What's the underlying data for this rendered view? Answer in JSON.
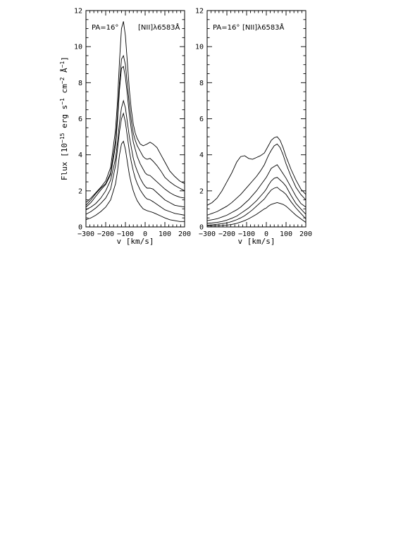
{
  "chart_data": [
    {
      "type": "line",
      "panel": "left",
      "xlabel": "v [km/s]",
      "ylabel": "Flux [10^-15 erg s^-1 cm^-2 Å^-1]",
      "xlim": [
        -300,
        200
      ],
      "ylim": [
        0,
        12
      ],
      "xticks": [
        -300,
        -200,
        -100,
        0,
        100,
        200
      ],
      "yticks": [
        0,
        2,
        4,
        6,
        8,
        10,
        12
      ],
      "grid": false,
      "annotations": [
        "PA=16°",
        "[NII]λ6583Å"
      ],
      "x": [
        -300,
        -275,
        -250,
        -225,
        -200,
        -175,
        -150,
        -140,
        -130,
        -120,
        -110,
        -100,
        -90,
        -80,
        -70,
        -60,
        -50,
        -40,
        -25,
        -10,
        0,
        10,
        25,
        40,
        60,
        80,
        100,
        125,
        150,
        175,
        200
      ],
      "series": [
        {
          "values": [
            1.35,
            1.6,
            1.9,
            2.2,
            2.55,
            3.3,
            5.4,
            7.0,
            9.2,
            11.0,
            11.4,
            10.6,
            9.1,
            7.6,
            6.5,
            5.7,
            5.2,
            4.9,
            4.6,
            4.5,
            4.55,
            4.6,
            4.7,
            4.6,
            4.4,
            4.0,
            3.6,
            3.1,
            2.8,
            2.55,
            2.4
          ]
        },
        {
          "values": [
            1.2,
            1.5,
            1.85,
            2.15,
            2.4,
            3.0,
            4.8,
            6.2,
            8.0,
            9.3,
            9.5,
            9.0,
            7.9,
            6.8,
            5.9,
            5.2,
            4.8,
            4.5,
            4.2,
            3.9,
            3.8,
            3.75,
            3.8,
            3.65,
            3.4,
            3.1,
            2.75,
            2.5,
            2.3,
            2.15,
            2.0
          ]
        },
        {
          "values": [
            1.1,
            1.35,
            1.7,
            2.05,
            2.35,
            2.9,
            4.5,
            5.9,
            7.6,
            8.8,
            8.9,
            8.3,
            7.3,
            6.2,
            5.4,
            4.7,
            4.3,
            3.9,
            3.5,
            3.2,
            3.0,
            2.9,
            2.85,
            2.7,
            2.5,
            2.3,
            2.1,
            1.9,
            1.75,
            1.65,
            1.6
          ]
        },
        {
          "values": [
            0.95,
            1.1,
            1.3,
            1.6,
            2.0,
            2.6,
            3.8,
            4.7,
            5.8,
            6.6,
            7.0,
            6.6,
            5.8,
            5.0,
            4.4,
            3.8,
            3.4,
            3.1,
            2.7,
            2.4,
            2.25,
            2.15,
            2.15,
            2.1,
            1.9,
            1.7,
            1.5,
            1.35,
            1.2,
            1.15,
            1.1
          ]
        },
        {
          "values": [
            0.7,
            0.85,
            1.05,
            1.3,
            1.6,
            2.1,
            3.4,
            4.3,
            5.3,
            6.0,
            6.3,
            5.8,
            5.0,
            4.2,
            3.6,
            3.1,
            2.7,
            2.4,
            2.05,
            1.8,
            1.65,
            1.55,
            1.5,
            1.4,
            1.25,
            1.1,
            0.95,
            0.85,
            0.75,
            0.7,
            0.65
          ]
        },
        {
          "values": [
            0.4,
            0.5,
            0.65,
            0.85,
            1.1,
            1.5,
            2.4,
            3.1,
            4.0,
            4.6,
            4.75,
            4.3,
            3.6,
            2.9,
            2.4,
            2.0,
            1.7,
            1.45,
            1.2,
            1.0,
            0.95,
            0.9,
            0.85,
            0.8,
            0.7,
            0.6,
            0.5,
            0.4,
            0.35,
            0.3,
            0.3
          ]
        }
      ]
    },
    {
      "type": "line",
      "panel": "right",
      "xlabel": "v [km/s]",
      "xlim": [
        -300,
        200
      ],
      "ylim": [
        0,
        12
      ],
      "xticks": [
        -300,
        -200,
        -100,
        0,
        100,
        200
      ],
      "yticks": [
        0,
        2,
        4,
        6,
        8,
        10,
        12
      ],
      "grid": false,
      "annotations": [
        "PA=16°",
        "[NII]λ6583Å"
      ],
      "x": [
        -300,
        -275,
        -250,
        -225,
        -200,
        -175,
        -150,
        -130,
        -110,
        -90,
        -70,
        -50,
        -30,
        -10,
        0,
        10,
        25,
        40,
        55,
        70,
        85,
        100,
        125,
        150,
        175,
        200
      ],
      "series": [
        {
          "values": [
            1.2,
            1.35,
            1.6,
            2.0,
            2.5,
            3.0,
            3.6,
            3.9,
            3.95,
            3.8,
            3.75,
            3.85,
            3.95,
            4.1,
            4.3,
            4.5,
            4.8,
            4.95,
            5.0,
            4.8,
            4.4,
            3.9,
            3.2,
            2.6,
            2.1,
            1.8
          ]
        },
        {
          "values": [
            0.65,
            0.75,
            0.85,
            1.0,
            1.15,
            1.35,
            1.6,
            1.8,
            2.05,
            2.3,
            2.55,
            2.8,
            3.1,
            3.45,
            3.7,
            3.95,
            4.25,
            4.5,
            4.6,
            4.4,
            4.0,
            3.5,
            2.8,
            2.2,
            1.8,
            1.5
          ]
        },
        {
          "values": [
            0.35,
            0.4,
            0.45,
            0.55,
            0.65,
            0.8,
            0.95,
            1.1,
            1.3,
            1.5,
            1.75,
            2.0,
            2.3,
            2.6,
            2.75,
            2.95,
            3.25,
            3.35,
            3.45,
            3.2,
            2.95,
            2.7,
            2.2,
            1.7,
            1.3,
            1.1
          ]
        },
        {
          "values": [
            0.2,
            0.22,
            0.25,
            0.3,
            0.38,
            0.48,
            0.6,
            0.75,
            0.9,
            1.05,
            1.25,
            1.45,
            1.7,
            1.95,
            2.1,
            2.3,
            2.55,
            2.7,
            2.75,
            2.6,
            2.45,
            2.25,
            1.75,
            1.3,
            1.0,
            0.7
          ]
        },
        {
          "values": [
            0.1,
            0.12,
            0.15,
            0.18,
            0.22,
            0.3,
            0.4,
            0.5,
            0.62,
            0.78,
            0.95,
            1.15,
            1.35,
            1.55,
            1.7,
            1.85,
            2.05,
            2.15,
            2.2,
            2.05,
            1.95,
            1.8,
            1.4,
            1.05,
            0.75,
            0.45
          ]
        },
        {
          "values": [
            0.05,
            0.06,
            0.07,
            0.08,
            0.1,
            0.14,
            0.2,
            0.27,
            0.35,
            0.45,
            0.57,
            0.7,
            0.85,
            1.0,
            1.05,
            1.15,
            1.25,
            1.3,
            1.35,
            1.3,
            1.25,
            1.15,
            0.9,
            0.65,
            0.45,
            0.25
          ]
        }
      ]
    }
  ]
}
